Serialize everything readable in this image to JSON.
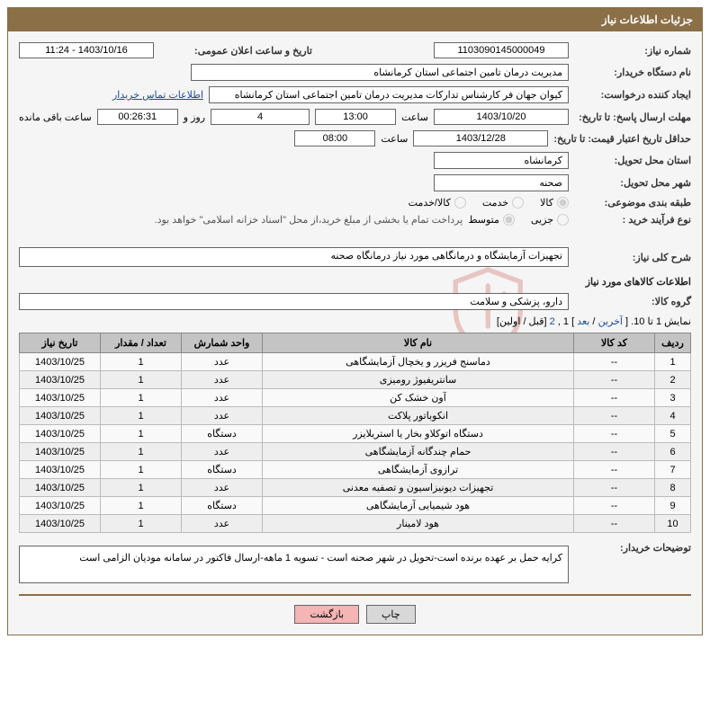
{
  "panel": {
    "title": "جزئیات اطلاعات نیاز"
  },
  "need_no": {
    "label": "شماره نیاز:",
    "value": "1103090145000049"
  },
  "announce": {
    "label": "تاریخ و ساعت اعلان عمومی:",
    "value": "1403/10/16 - 11:24"
  },
  "buyer": {
    "label": "نام دستگاه خریدار:",
    "value": "مدیریت درمان تامین اجتماعی استان کرمانشاه"
  },
  "requester": {
    "label": "ایجاد کننده درخواست:",
    "value": "کیوان جهان فر کارشناس تدارکات مدیریت درمان تامین اجتماعی استان کرمانشاه",
    "contact_link": "اطلاعات تماس خریدار"
  },
  "deadline": {
    "label": "مهلت ارسال پاسخ: تا تاریخ:",
    "date": "1403/10/20",
    "hour_label": "ساعت",
    "hour": "13:00",
    "days": "4",
    "days_label": "روز و",
    "remain": "00:26:31",
    "remain_label": "ساعت باقی مانده"
  },
  "validity": {
    "label": "حداقل تاریخ اعتبار قیمت: تا تاریخ:",
    "date": "1403/12/28",
    "hour_label": "ساعت",
    "hour": "08:00"
  },
  "province": {
    "label": "استان محل تحویل:",
    "value": "کرمانشاه"
  },
  "city": {
    "label": "شهر محل تحویل:",
    "value": "صحنه"
  },
  "category": {
    "label": "طبقه بندی موضوعی:",
    "opts": [
      "کالا",
      "خدمت",
      "کالا/خدمت"
    ],
    "selected": 0
  },
  "proc_type": {
    "label": "نوع فرآیند خرید :",
    "opts": [
      "جزیی",
      "متوسط"
    ],
    "selected": 1,
    "note": "پرداخت تمام یا بخشی از مبلغ خرید،از محل \"اسناد خزانه اسلامی\" خواهد بود."
  },
  "overview": {
    "label": " شرح کلی نیاز:",
    "value": "تجهیزات آزمایشگاه و درمانگاهی مورد نیاز درمانگاه صحنه"
  },
  "goods_section": "اطلاعات کالاهای مورد نیاز",
  "group": {
    "label": "گروه کالا:",
    "value": "دارو، پزشکی و سلامت"
  },
  "pagination": {
    "text1": "نمایش 1 تا 10. [ ",
    "last": "آخرین",
    "sep1": " / ",
    "next": "بعد",
    "sep2": " ] ",
    "p1": "1",
    "comma": ", ",
    "p2": "2",
    "sep3": " [قبل / اولین]"
  },
  "table": {
    "headers": [
      "ردیف",
      "کد کالا",
      "نام کالا",
      "واحد شمارش",
      "تعداد / مقدار",
      "تاریخ نیاز"
    ],
    "col_widths": [
      "40px",
      "90px",
      "auto",
      "90px",
      "90px",
      "90px"
    ],
    "rows": [
      [
        "1",
        "--",
        "دماسنج فریزر و یخچال آزمایشگاهی",
        "عدد",
        "1",
        "1403/10/25"
      ],
      [
        "2",
        "--",
        "سانتریفیوژ رومیزی",
        "عدد",
        "1",
        "1403/10/25"
      ],
      [
        "3",
        "--",
        "آون خشک کن",
        "عدد",
        "1",
        "1403/10/25"
      ],
      [
        "4",
        "--",
        "انکوباتور پلاکت",
        "عدد",
        "1",
        "1403/10/25"
      ],
      [
        "5",
        "--",
        "دستگاه اتوکلاو بخار یا استریلایزر",
        "دستگاه",
        "1",
        "1403/10/25"
      ],
      [
        "6",
        "--",
        "حمام چندگانه آزمایشگاهی",
        "عدد",
        "1",
        "1403/10/25"
      ],
      [
        "7",
        "--",
        "ترازوی آزمایشگاهی",
        "دستگاه",
        "1",
        "1403/10/25"
      ],
      [
        "8",
        "--",
        "تجهیزات دیونیزاسیون و تصفیه معدنی",
        "عدد",
        "1",
        "1403/10/25"
      ],
      [
        "9",
        "--",
        "هود شیمیایی آزمایشگاهی",
        "دستگاه",
        "1",
        "1403/10/25"
      ],
      [
        "10",
        "--",
        "هود لامینار",
        "عدد",
        "1",
        "1403/10/25"
      ]
    ]
  },
  "buyer_desc": {
    "label": "توضیحات خریدار:",
    "value": "کرایه حمل بر عهده برنده است-تحویل در شهر صحنه است - تسویه 1 ماهه-ارسال فاکتور در سامانه مودیان الزامی است"
  },
  "buttons": {
    "print": "چاپ",
    "back": "بازگشت"
  },
  "colors": {
    "panel_border": "#8B6F47",
    "header_bg": "#8B6F47",
    "header_fg": "#ffffff",
    "body_bg": "#f5f5f5",
    "link": "#1a4b9b",
    "th_bg": "#c4c4c4",
    "btn_back_bg": "#f5b5b5",
    "watermark": "#c0392b"
  }
}
